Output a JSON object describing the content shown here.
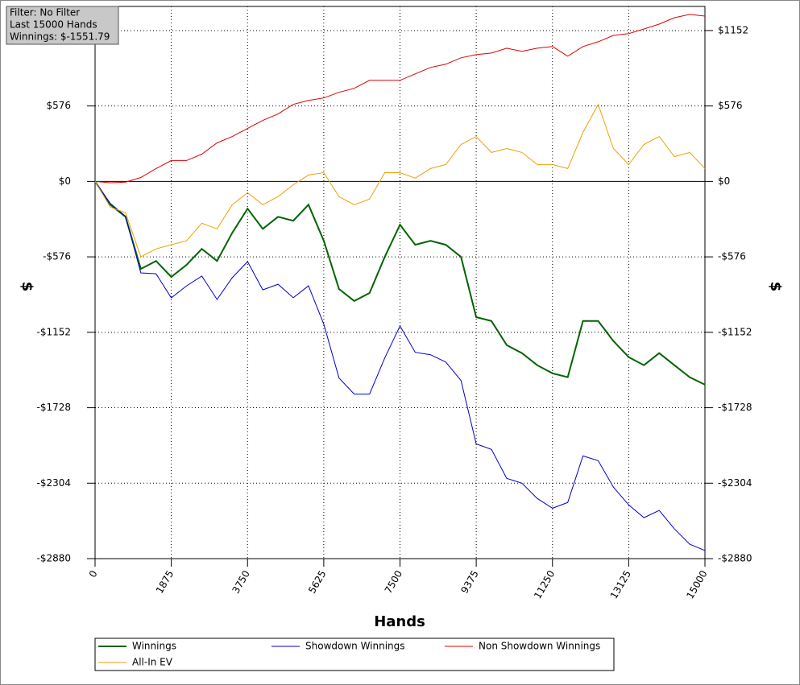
{
  "chart_data": {
    "type": "line",
    "info_box": [
      "Filter: No Filter",
      "Last  15000 Hands",
      "Winnings: $-1551.79"
    ],
    "x_label": "Hands",
    "y_label": "$",
    "x": [
      0,
      375,
      750,
      1125,
      1500,
      1875,
      2250,
      2625,
      3000,
      3375,
      3750,
      4125,
      4500,
      4875,
      5250,
      5625,
      6000,
      6375,
      6750,
      7125,
      7500,
      7875,
      8250,
      8625,
      9000,
      9375,
      9750,
      10125,
      10500,
      10875,
      11250,
      11625,
      12000,
      12375,
      12750,
      13125,
      13500,
      13875,
      14250,
      14625,
      15000
    ],
    "xlim": [
      0,
      15000
    ],
    "xticks": [
      0,
      1875,
      3750,
      5625,
      7500,
      9375,
      11250,
      13125,
      15000
    ],
    "ylim": [
      -2880,
      1336
    ],
    "yticks": [
      {
        "value": -2880,
        "label": "-$2880"
      },
      {
        "value": -2304,
        "label": "-$2304"
      },
      {
        "value": -1728,
        "label": "-$1728"
      },
      {
        "value": -1152,
        "label": "-$1152"
      },
      {
        "value": -576,
        "label": "-$576"
      },
      {
        "value": 0,
        "label": "$0"
      },
      {
        "value": 576,
        "label": "$576"
      },
      {
        "value": 1152,
        "label": "$1152"
      }
    ],
    "grid": true,
    "series": [
      {
        "name": "Winnings",
        "color": "#006400",
        "values": [
          0,
          -178,
          -270,
          -668,
          -607,
          -729,
          -637,
          -515,
          -607,
          -392,
          -208,
          -362,
          -270,
          -300,
          -178,
          -453,
          -821,
          -913,
          -852,
          -576,
          -331,
          -484,
          -453,
          -484,
          -576,
          -1036,
          -1066,
          -1250,
          -1311,
          -1403,
          -1465,
          -1495,
          -1066,
          -1066,
          -1219,
          -1342,
          -1403,
          -1311,
          -1403,
          -1495,
          -1552
        ]
      },
      {
        "name": "Showdown Winnings",
        "color": "#0000cd",
        "values": [
          0,
          -168,
          -265,
          -698,
          -705,
          -889,
          -797,
          -723,
          -901,
          -735,
          -612,
          -828,
          -785,
          -888,
          -797,
          -1090,
          -1501,
          -1624,
          -1624,
          -1348,
          -1103,
          -1305,
          -1323,
          -1379,
          -1520,
          -2004,
          -2046,
          -2267,
          -2304,
          -2420,
          -2495,
          -2451,
          -2096,
          -2132,
          -2334,
          -2470,
          -2567,
          -2512,
          -2653,
          -2770,
          -2818
        ]
      },
      {
        "name": "Non Showdown Winnings",
        "color": "#e00000",
        "values": [
          0,
          -10,
          -5,
          30,
          98,
          160,
          160,
          208,
          294,
          343,
          404,
          466,
          515,
          588,
          619,
          637,
          680,
          711,
          772,
          772,
          772,
          821,
          870,
          895,
          944,
          968,
          980,
          1017,
          993,
          1017,
          1030,
          956,
          1030,
          1066,
          1115,
          1128,
          1164,
          1201,
          1250,
          1275,
          1262
        ]
      },
      {
        "name": "All-In EV",
        "color": "#f0a000",
        "values": [
          0,
          -196,
          -239,
          -576,
          -515,
          -484,
          -453,
          -319,
          -362,
          -178,
          -86,
          -178,
          -116,
          -25,
          49,
          67,
          -116,
          -178,
          -135,
          67,
          67,
          25,
          98,
          129,
          282,
          343,
          221,
          251,
          221,
          129,
          129,
          98,
          374,
          588,
          251,
          129,
          282,
          343,
          190,
          221,
          98
        ]
      }
    ]
  }
}
